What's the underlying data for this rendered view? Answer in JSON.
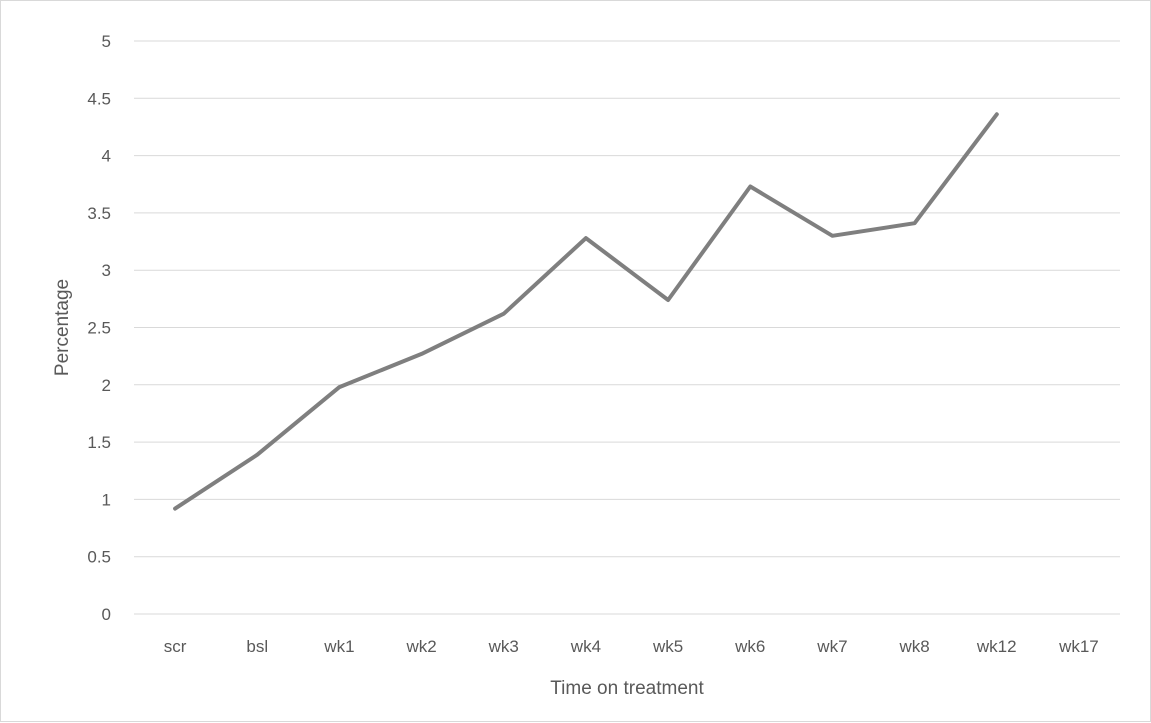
{
  "chart_data": {
    "type": "line",
    "title": "",
    "xlabel": "Time on treatment",
    "ylabel": "Percentage",
    "categories": [
      "scr",
      "bsl",
      "wk1",
      "wk2",
      "wk3",
      "wk4",
      "wk5",
      "wk6",
      "wk7",
      "wk8",
      "wk12",
      "wk17"
    ],
    "y_ticks": [
      "0",
      "0.5",
      "1",
      "1.5",
      "2",
      "2.5",
      "3",
      "3.5",
      "4",
      "4.5",
      "5"
    ],
    "ylim": [
      0,
      5
    ],
    "grid": true,
    "legend": "none",
    "series": [
      {
        "color": "#7f7f7f",
        "values": [
          0.92,
          1.39,
          1.98,
          2.27,
          2.62,
          3.28,
          2.74,
          3.73,
          3.3,
          3.41,
          4.36,
          null
        ]
      }
    ]
  }
}
